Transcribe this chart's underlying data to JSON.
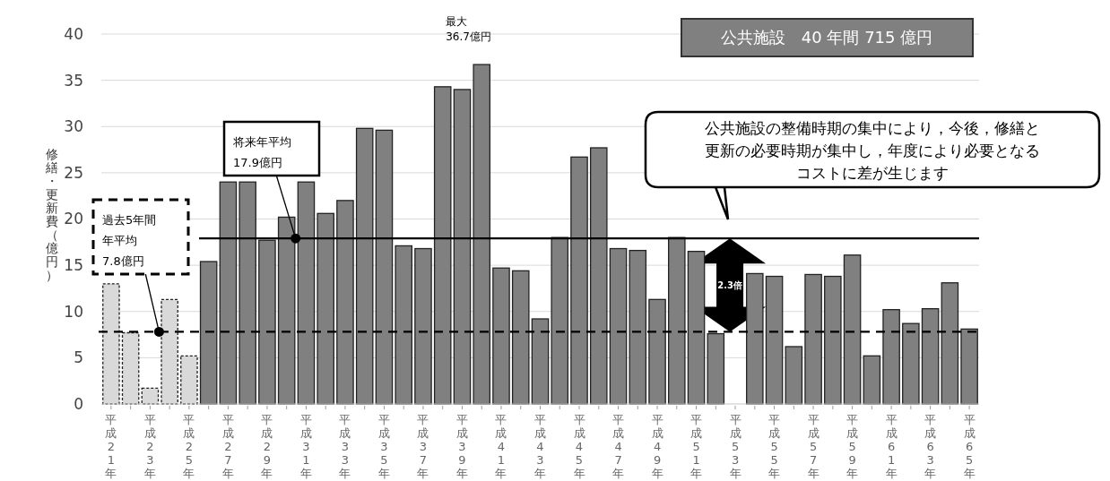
{
  "chart_data": {
    "type": "bar",
    "title": "公共施設　40 年間 715 億円",
    "ylabel": "修繕・更新費（億円）",
    "categories": [
      "平成21年",
      null,
      "平成23年",
      null,
      "平成25年",
      null,
      "平成27年",
      null,
      "平成29年",
      null,
      "平成31年",
      null,
      "平成33年",
      null,
      "平成35年",
      null,
      "平成37年",
      null,
      "平成39年",
      null,
      "平成41年",
      null,
      "平成43年",
      null,
      "平成45年",
      null,
      "平成47年",
      null,
      "平成49年",
      null,
      "平成51年",
      null,
      "平成53年",
      null,
      "平成55年",
      null,
      "平成57年",
      null,
      "平成59年",
      null,
      "平成61年",
      null,
      "平成63年",
      null,
      "平成65年"
    ],
    "values": [
      13,
      7.7,
      1.7,
      11.3,
      5.2,
      15.4,
      24,
      24,
      17.7,
      20.2,
      24,
      20.6,
      22.0,
      29.8,
      29.6,
      17.1,
      16.8,
      34.3,
      34.0,
      36.7,
      14.7,
      14.4,
      9.2,
      18.0,
      26.7,
      27.7,
      16.8,
      16.6,
      11.3,
      18.0,
      16.5,
      7.6,
      null,
      14.1,
      13.8,
      6.2,
      14.0,
      13.8,
      16.1,
      5.2,
      10.2,
      8.7,
      10.3,
      13.1,
      8.1
    ],
    "colors": [
      "#d9d9d9",
      "#d9d9d9",
      "#d9d9d9",
      "#d9d9d9",
      "#d9d9d9",
      "#808080",
      "#808080",
      "#808080",
      "#808080",
      "#808080",
      "#808080",
      "#808080",
      "#808080",
      "#808080",
      "#808080",
      "#808080",
      "#808080",
      "#808080",
      "#808080",
      "#808080",
      "#808080",
      "#808080",
      "#808080",
      "#808080",
      "#808080",
      "#808080",
      "#808080",
      "#808080",
      "#808080",
      "#808080",
      "#808080",
      "#808080",
      null,
      "#808080",
      "#808080",
      "#808080",
      "#808080",
      "#808080",
      "#808080",
      "#808080",
      "#808080",
      "#808080",
      "#808080",
      "#808080",
      "#808080"
    ],
    "ylim": [
      0,
      40
    ],
    "yticks": [
      0,
      5,
      10,
      15,
      20,
      25,
      30,
      35,
      40
    ],
    "grid": "y",
    "ref_lines": [
      {
        "axis": "y",
        "value": 17.9,
        "label": "将来年平均17.9億円",
        "line_style": "solid",
        "color": "#000000"
      },
      {
        "axis": "y",
        "value": 7.8,
        "label": "過去5年間年平均7.8億円",
        "line_style": "dashed",
        "color": "#000000"
      }
    ],
    "annotations": [
      "最大36.7億円",
      "2.3倍",
      "公共施設の整備時期の集中により，今後，修繕と更新の必要時期が集中し，年度により必要となるコストに差が生じます"
    ]
  }
}
